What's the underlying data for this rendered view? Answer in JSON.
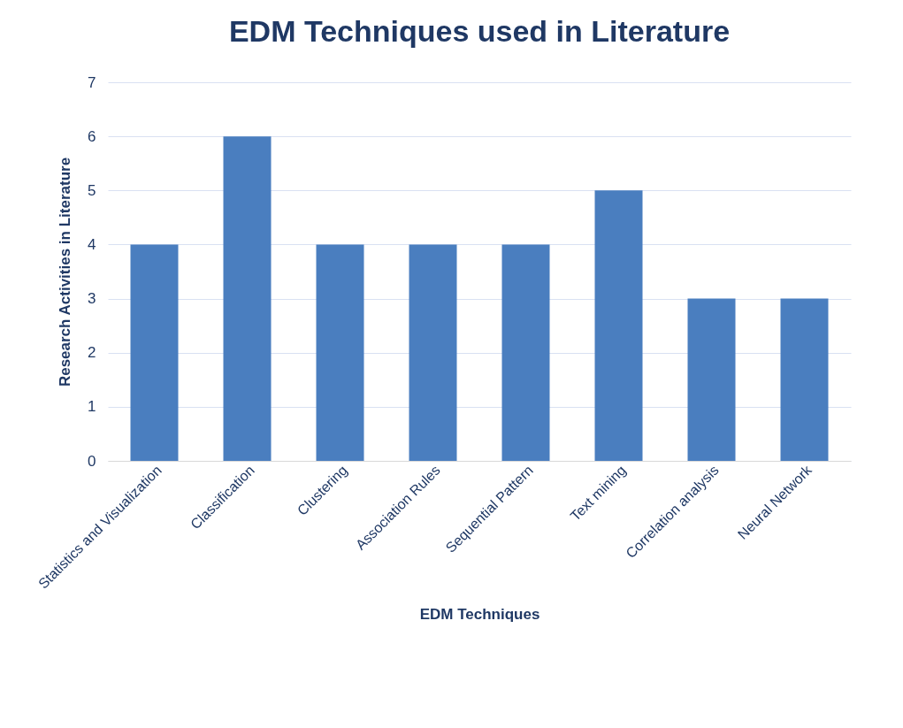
{
  "chart_data": {
    "type": "bar",
    "title": "EDM Techniques used in Literature",
    "xlabel": "EDM Techniques",
    "ylabel": "Research Activities in Literature",
    "categories": [
      "Statistics and Visualization",
      "Classification",
      "Clustering",
      "Association Rules",
      "Sequential Pattern",
      "Text mining",
      "Correlation analysis",
      "Neural Network"
    ],
    "values": [
      4,
      6,
      4,
      4,
      4,
      5,
      3,
      3
    ],
    "color": "#4a7ebf",
    "ylim": [
      0,
      7
    ],
    "yticks": [
      0,
      1,
      2,
      3,
      4,
      5,
      6,
      7
    ],
    "grid": "y"
  }
}
